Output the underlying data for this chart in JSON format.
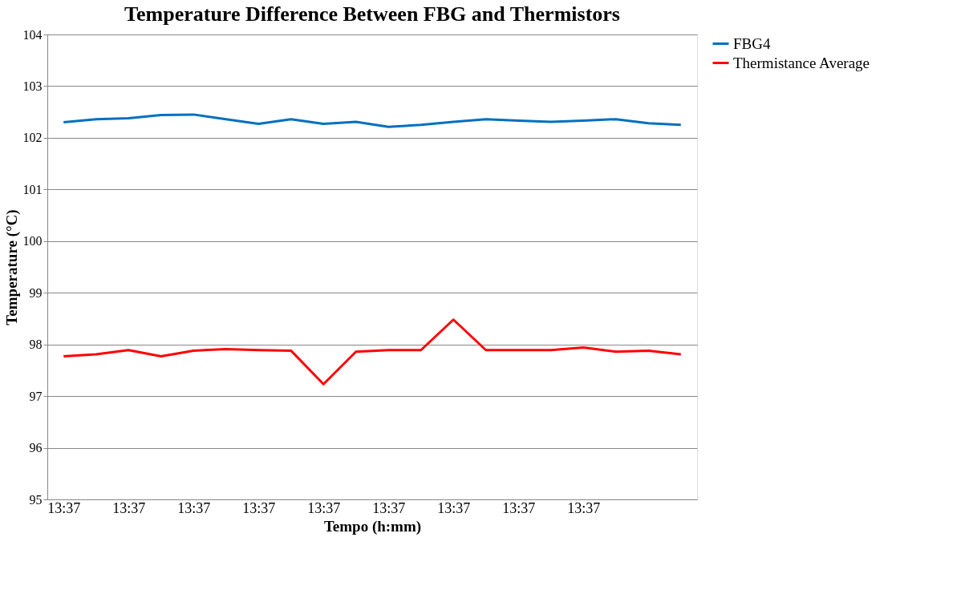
{
  "chart_data": {
    "type": "line",
    "title": "Temperature Difference Between FBG and Thermistors",
    "xlabel": "Tempo (h:mm)",
    "ylabel": "Temperature (°C)",
    "categories": [
      "13:37",
      null,
      "13:37",
      null,
      "13:37",
      null,
      "13:37",
      null,
      "13:37",
      null,
      "13:37",
      null,
      "13:37",
      null,
      "13:37",
      null,
      "13:37",
      null,
      null,
      null
    ],
    "series": [
      {
        "name": "FBG4",
        "color": "#0070c0",
        "values": [
          102.3,
          102.36,
          102.38,
          102.44,
          102.45,
          102.36,
          102.27,
          102.36,
          102.27,
          102.31,
          102.21,
          102.25,
          102.31,
          102.36,
          102.33,
          102.31,
          102.33,
          102.36,
          102.28,
          102.25
        ]
      },
      {
        "name": "Thermistance Average",
        "color": "#ff0000",
        "values": [
          97.77,
          97.81,
          97.89,
          97.77,
          97.88,
          97.91,
          97.89,
          97.88,
          97.23,
          97.86,
          97.89,
          97.89,
          98.48,
          97.89,
          97.89,
          97.89,
          97.94,
          97.86,
          97.88,
          97.81
        ]
      }
    ],
    "ylim": [
      95,
      104
    ],
    "yticks": [
      95,
      96,
      97,
      98,
      99,
      100,
      101,
      102,
      103,
      104
    ],
    "grid": "y",
    "legend": "right",
    "marker": "none",
    "line_style": "solid"
  }
}
